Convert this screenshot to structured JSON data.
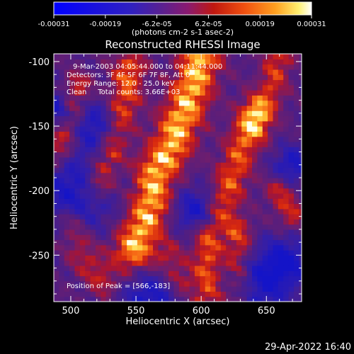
{
  "chart_data": {
    "type": "heatmap",
    "title": "Reconstructed RHESSI Image",
    "xlabel": "Heliocentric X (arcsec)",
    "ylabel": "Heliocentric Y (arcsec)",
    "xlim": [
      487,
      677
    ],
    "ylim": [
      -286,
      -94
    ],
    "xticks": [
      500,
      550,
      600,
      650
    ],
    "yticks": [
      -100,
      -150,
      -200,
      -250
    ],
    "colorbar": {
      "ticks": [
        "-0.00031",
        "-0.00019",
        "-6.2e-05",
        "6.2e-05",
        "0.00019",
        "0.00031"
      ],
      "label": "(photons cm-2 s-1 asec-2)",
      "range": [
        -0.00031,
        0.00031
      ]
    },
    "annotations": {
      "time": "9-Mar-2003 04:05:44.000 to 04:11:44.000",
      "detectors": "Detectors: 3F 4F 5F 6F 7F 8F, Att 0",
      "energy": "Energy Range: 12.0 - 25.0 keV",
      "clean": "Clean     Total counts: 3.66E+03",
      "peak": "Position of Peak = [566,-183]"
    },
    "peak": {
      "x": 566,
      "y": -183
    },
    "grid": false
  },
  "footer": {
    "timestamp": "29-Apr-2022 16:40"
  }
}
